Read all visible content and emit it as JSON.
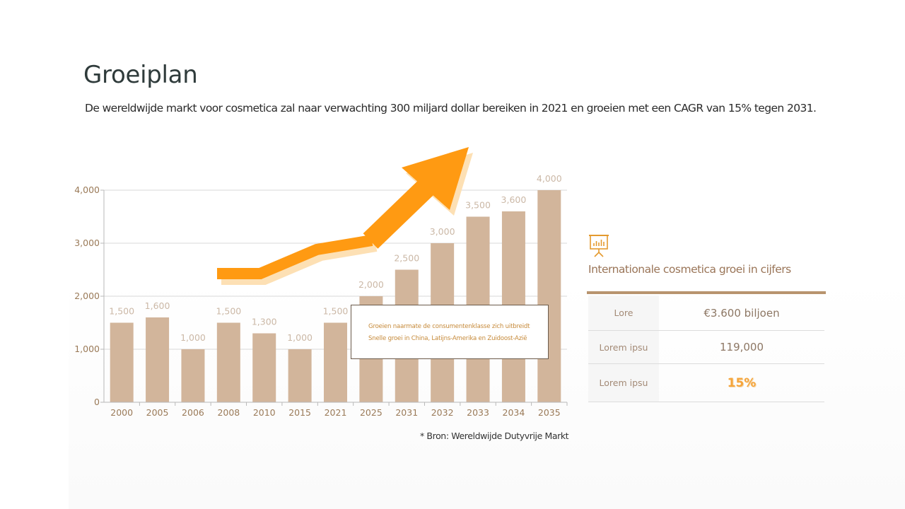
{
  "page": {
    "title": "Groeiplan",
    "subtitle": "De wereldwijde markt voor cosmetica zal naar verwachting 300 miljard dollar bereiken in 2021 en groeien met een CAGR van 15% tegen 2031."
  },
  "colors": {
    "bar": "#d2b59b",
    "arrow": "#ff9a12",
    "arrow_shadow": "#fde0b4",
    "axis_text": "#9a7a58",
    "value_text": "#cbb8a6",
    "accent": "#b8946e"
  },
  "chart_data": {
    "type": "bar",
    "categories": [
      "2000",
      "2005",
      "2006",
      "2008",
      "2010",
      "2015",
      "2021",
      "2025",
      "2031",
      "2032",
      "2033",
      "2034",
      "2035"
    ],
    "values": [
      1500,
      1600,
      1000,
      1500,
      1300,
      1000,
      1500,
      2000,
      2500,
      3000,
      3500,
      3600,
      4000
    ],
    "value_labels": [
      "1,500",
      "1,600",
      "1,000",
      "1,500",
      "1,300",
      "1,000",
      "1,500",
      "2,000",
      "2,500",
      "3,000",
      "3,500",
      "3,600",
      "4,000"
    ],
    "yticks": [
      "0",
      "1,000",
      "2,000",
      "3,000",
      "4,000"
    ],
    "ylim": [
      0,
      4000
    ],
    "grid": true,
    "annotation": "growth-arrow",
    "title": "",
    "xlabel": "",
    "ylabel": ""
  },
  "callout": {
    "line1": "Groeien naarmate de consumentenklasse zich uitbreidt",
    "line2": "Snelle groei in China, Latijns-Amerika en Zuidoost-Azië"
  },
  "source": "* Bron: Wereldwijde Dutyvrije Markt",
  "stats": {
    "icon": "presentation-chart-icon",
    "title": "Internationale cosmetica groei in cijfers",
    "rows": [
      {
        "label": "Lore",
        "value": "€3.600 biljoen"
      },
      {
        "label": "Lorem ipsu",
        "value": "119,000"
      },
      {
        "label": "Lorem ipsu",
        "value": "15%"
      }
    ]
  }
}
